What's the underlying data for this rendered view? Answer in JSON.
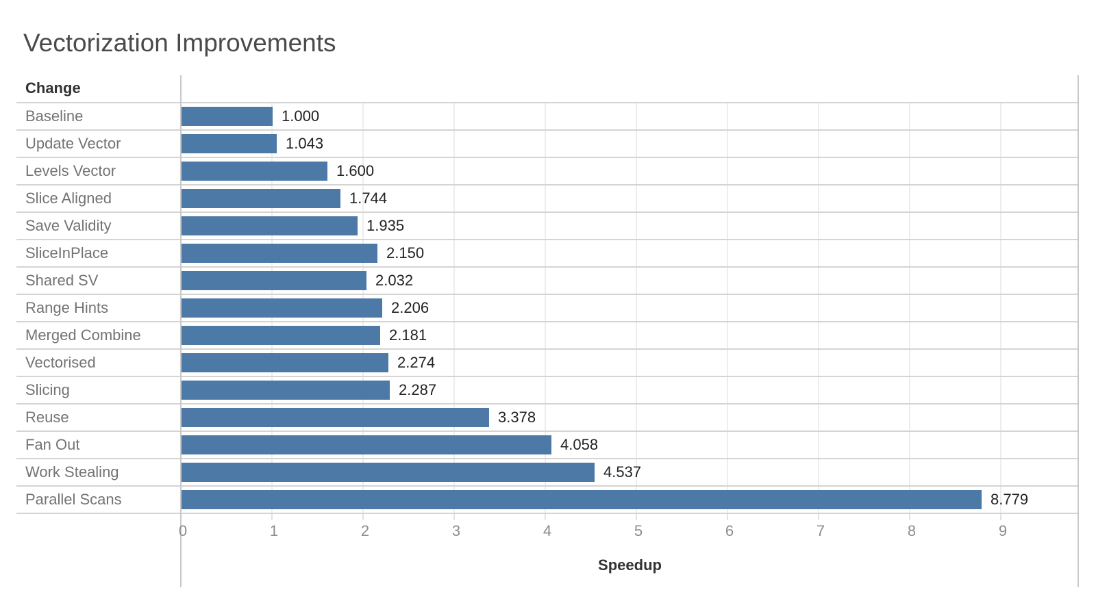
{
  "title": "Vectorization Improvements",
  "chart_data": {
    "type": "bar",
    "orientation": "horizontal",
    "title": "Vectorization Improvements",
    "column_header": "Change",
    "xlabel": "Speedup",
    "categories": [
      "Baseline",
      "Update Vector",
      "Levels Vector",
      "Slice Aligned",
      "Save Validity",
      "SliceInPlace",
      "Shared SV",
      "Range Hints",
      "Merged Combine",
      "Vectorised",
      "Slicing",
      "Reuse",
      "Fan Out",
      "Work Stealing",
      "Parallel Scans"
    ],
    "values": [
      1.0,
      1.043,
      1.6,
      1.744,
      1.935,
      2.15,
      2.032,
      2.206,
      2.181,
      2.274,
      2.287,
      3.378,
      4.058,
      4.537,
      8.779
    ],
    "value_labels": [
      "1.000",
      "1.043",
      "1.600",
      "1.744",
      "1.935",
      "2.150",
      "2.032",
      "2.206",
      "2.181",
      "2.274",
      "2.287",
      "3.378",
      "4.058",
      "4.537",
      "8.779"
    ],
    "x_ticks": [
      0,
      1,
      2,
      3,
      4,
      5,
      6,
      7,
      8,
      9
    ],
    "xlim": [
      0,
      9.85
    ],
    "grid": true,
    "legend": "none",
    "bar_color": "#4d79a7"
  }
}
